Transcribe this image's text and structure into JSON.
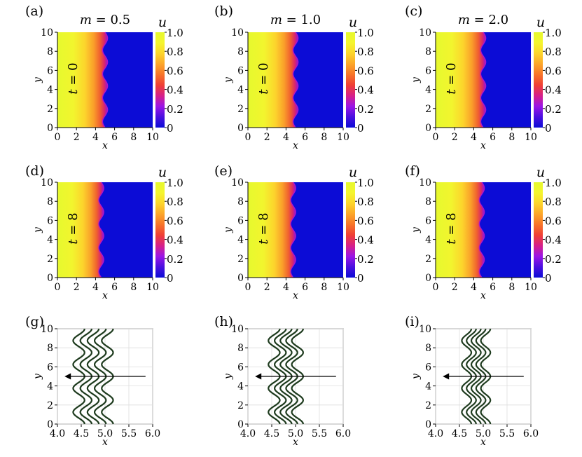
{
  "panel_labels": [
    "(a)",
    "(b)",
    "(c)",
    "(d)",
    "(e)",
    "(f)",
    "(g)",
    "(h)",
    "(i)"
  ],
  "column_titles": [
    {
      "var": "m",
      "value": "= 0.5"
    },
    {
      "var": "m",
      "value": "= 1.0"
    },
    {
      "var": "m",
      "value": "= 2.0"
    }
  ],
  "colorbar": {
    "label": "u",
    "ticks": [
      "1.0",
      "0.8",
      "0.6",
      "0.4",
      "0.2",
      "0"
    ],
    "colors": [
      "#0c0cd6",
      "#4a0fe0",
      "#9b15e6",
      "#d6208a",
      "#ef3f36",
      "#f7742a",
      "#fca62a",
      "#fdd52c",
      "#f4f52e",
      "#e6f92e"
    ]
  },
  "heatmap_x_ticks": [
    "0",
    "2",
    "4",
    "6",
    "8",
    "10"
  ],
  "heatmap_y_ticks": [
    "0",
    "2",
    "4",
    "6",
    "8",
    "10"
  ],
  "contour_x_ticks": [
    "4.0",
    "4.5",
    "5.0",
    "5.5",
    "6.0"
  ],
  "contour_y_ticks": [
    "0",
    "2",
    "4",
    "6",
    "8",
    "10"
  ],
  "xlabel": "x",
  "ylabel": "y",
  "row_annotations": [
    {
      "var": "t",
      "value": "= 0"
    },
    {
      "var": "t",
      "value": "= 8"
    }
  ],
  "chart_data": [
    {
      "panel": "(a)",
      "type": "heatmap",
      "m": 0.5,
      "t": 0,
      "front_x": 5.0,
      "wave_amp": 0.12,
      "xlim": [
        0,
        10
      ],
      "ylim": [
        0,
        10
      ]
    },
    {
      "panel": "(b)",
      "type": "heatmap",
      "m": 1.0,
      "t": 0,
      "front_x": 5.0,
      "wave_amp": 0.12,
      "xlim": [
        0,
        10
      ],
      "ylim": [
        0,
        10
      ]
    },
    {
      "panel": "(c)",
      "type": "heatmap",
      "m": 2.0,
      "t": 0,
      "front_x": 5.0,
      "wave_amp": 0.12,
      "xlim": [
        0,
        10
      ],
      "ylim": [
        0,
        10
      ]
    },
    {
      "panel": "(d)",
      "type": "heatmap",
      "m": 0.5,
      "t": 8,
      "front_x": 4.6,
      "wave_amp": 0.12,
      "xlim": [
        0,
        10
      ],
      "ylim": [
        0,
        10
      ]
    },
    {
      "panel": "(e)",
      "type": "heatmap",
      "m": 1.0,
      "t": 8,
      "front_x": 4.75,
      "wave_amp": 0.12,
      "xlim": [
        0,
        10
      ],
      "ylim": [
        0,
        10
      ]
    },
    {
      "panel": "(f)",
      "type": "heatmap",
      "m": 2.0,
      "t": 8,
      "front_x": 4.85,
      "wave_amp": 0.12,
      "xlim": [
        0,
        10
      ],
      "ylim": [
        0,
        10
      ]
    },
    {
      "panel": "(g)",
      "type": "line",
      "m": 0.5,
      "xlim": [
        4.0,
        6.0
      ],
      "ylim": [
        0,
        10
      ],
      "front_x": [
        4.45,
        4.6,
        4.75,
        4.9,
        5.05
      ],
      "amplitude": 0.12,
      "period": 2.5,
      "arrow": {
        "x_start": 5.85,
        "x_end": 4.15,
        "y": 5
      },
      "color": "#1e3b1e"
    },
    {
      "panel": "(h)",
      "type": "line",
      "m": 1.0,
      "xlim": [
        4.0,
        6.0
      ],
      "ylim": [
        0,
        10
      ],
      "front_x": [
        4.55,
        4.68,
        4.8,
        4.92,
        5.04
      ],
      "amplitude": 0.12,
      "period": 2.5,
      "arrow": {
        "x_start": 5.85,
        "x_end": 4.15,
        "y": 5
      },
      "color": "#1e3b1e"
    },
    {
      "panel": "(i)",
      "type": "line",
      "m": 2.0,
      "xlim": [
        4.0,
        6.0
      ],
      "ylim": [
        0,
        10
      ],
      "front_x": [
        4.65,
        4.75,
        4.85,
        4.95,
        5.05
      ],
      "amplitude": 0.1,
      "period": 2.5,
      "arrow": {
        "x_start": 5.85,
        "x_end": 4.15,
        "y": 5
      },
      "color": "#1e3b1e"
    }
  ]
}
